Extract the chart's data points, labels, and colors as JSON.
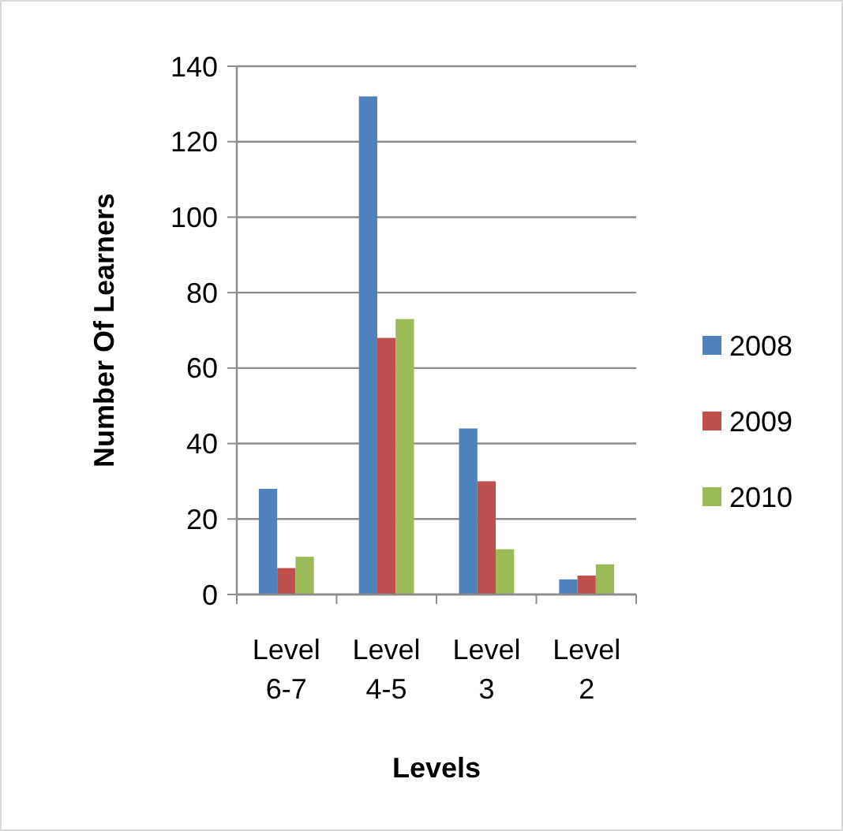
{
  "chart_data": {
    "type": "bar",
    "xlabel": "Levels",
    "ylabel": "Number Of Learners",
    "categories": [
      "Level 6-7",
      "Level 4-5",
      "Level 3",
      "Level 2"
    ],
    "series": [
      {
        "name": "2008",
        "color": "#4f81bd",
        "values": [
          28,
          132,
          44,
          4
        ]
      },
      {
        "name": "2009",
        "color": "#c0504d",
        "values": [
          7,
          68,
          30,
          5
        ]
      },
      {
        "name": "2010",
        "color": "#9bbb59",
        "values": [
          10,
          73,
          12,
          8
        ]
      }
    ],
    "ylim": [
      0,
      140
    ],
    "yticks": [
      0,
      20,
      40,
      60,
      80,
      100,
      120,
      140
    ],
    "grid": "y",
    "legend": "right"
  }
}
